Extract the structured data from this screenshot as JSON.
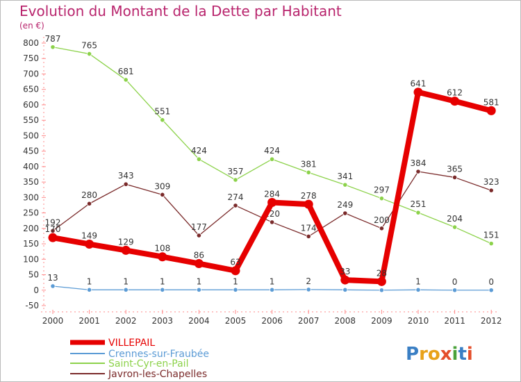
{
  "chart_data": {
    "type": "line",
    "title": "Evolution du Montant de la Dette par Habitant",
    "subtitle": "(en €)",
    "x": [
      "2000",
      "2001",
      "2002",
      "2003",
      "2004",
      "2005",
      "2006",
      "2007",
      "2008",
      "2009",
      "2010",
      "2011",
      "2012"
    ],
    "ylim": [
      -50,
      800
    ],
    "yticks": [
      -50,
      0,
      50,
      100,
      150,
      200,
      250,
      300,
      350,
      400,
      450,
      500,
      550,
      600,
      650,
      700,
      750,
      800
    ],
    "grid": false,
    "legend_position": "bottom-left",
    "series": [
      {
        "name": "VILLEPAIL",
        "color": "#e60000",
        "values": [
          170,
          149,
          129,
          108,
          86,
          63,
          284,
          278,
          33,
          28,
          641,
          612,
          581
        ],
        "labels": [
          "170",
          "149",
          "129",
          "108",
          "86",
          "63",
          "284",
          "278",
          "33",
          "28",
          "641",
          "612",
          "581"
        ]
      },
      {
        "name": "Crennes-sur-Fraubée",
        "color": "#5b9bd5",
        "values": [
          13,
          1,
          1,
          1,
          1,
          1,
          1,
          2,
          1,
          0,
          1,
          0,
          0
        ],
        "labels": [
          "13",
          "1",
          "1",
          "1",
          "1",
          "1",
          "1",
          "2",
          "",
          "",
          "1",
          "0",
          "0"
        ]
      },
      {
        "name": "Saint-Cyr-en-Pail",
        "color": "#8cd24a",
        "values": [
          787,
          765,
          681,
          551,
          424,
          357,
          424,
          381,
          341,
          297,
          251,
          204,
          151
        ],
        "labels": [
          "787",
          "765",
          "681",
          "551",
          "424",
          "357",
          "424",
          "381",
          "341",
          "297",
          "251",
          "204",
          "151"
        ]
      },
      {
        "name": "Javron-les-Chapelles",
        "color": "#7a2a2a",
        "values": [
          192,
          280,
          343,
          309,
          177,
          274,
          220,
          174,
          249,
          200,
          384,
          365,
          323
        ],
        "labels": [
          "192",
          "280",
          "343",
          "309",
          "177",
          "274",
          "220",
          "174",
          "249",
          "200",
          "384",
          "365",
          "323"
        ]
      }
    ]
  },
  "watermark": "Proxiti"
}
